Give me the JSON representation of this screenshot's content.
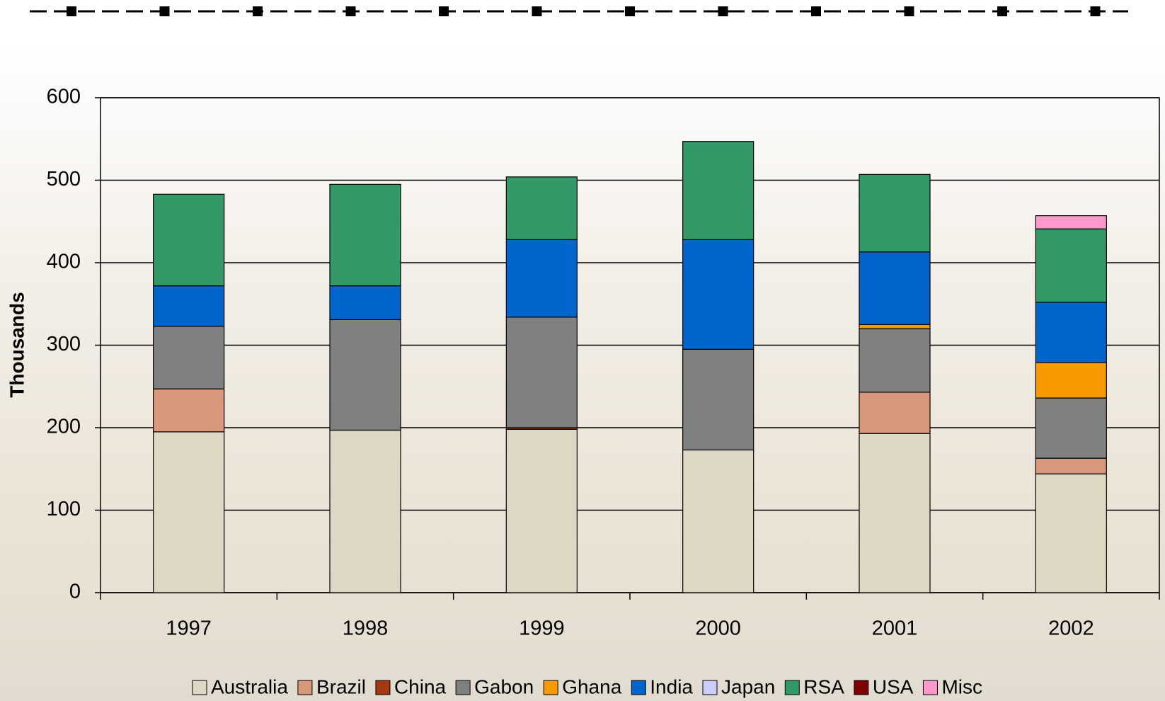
{
  "chart_data": {
    "type": "stacked-bar",
    "y_label": "Thousands",
    "categories": [
      "1997",
      "1998",
      "1999",
      "2000",
      "2001",
      "2002"
    ],
    "series": [
      {
        "name": "Australia",
        "color": "#ddd7c3",
        "values": [
          195,
          197,
          198,
          173,
          193,
          144
        ]
      },
      {
        "name": "Brazil",
        "color": "#d8987c",
        "values": [
          52,
          0,
          0,
          0,
          50,
          19
        ]
      },
      {
        "name": "China",
        "color": "#a33a12",
        "values": [
          0,
          0,
          2,
          0,
          0,
          0
        ]
      },
      {
        "name": "Gabon",
        "color": "#808080",
        "values": [
          76,
          134,
          134,
          122,
          77,
          73
        ]
      },
      {
        "name": "Ghana",
        "color": "#f79a00",
        "values": [
          0,
          0,
          0,
          0,
          5,
          43
        ]
      },
      {
        "name": "India",
        "color": "#0066cc",
        "values": [
          49,
          41,
          94,
          133,
          88,
          73
        ]
      },
      {
        "name": "Japan",
        "color": "#ccccff",
        "values": [
          0,
          0,
          0,
          0,
          0,
          0
        ]
      },
      {
        "name": "RSA",
        "color": "#339966",
        "values": [
          111,
          123,
          76,
          119,
          94,
          89
        ]
      },
      {
        "name": "USA",
        "color": "#800000",
        "values": [
          0,
          0,
          0,
          0,
          0,
          0
        ]
      },
      {
        "name": "Misc",
        "color": "#ff99cc",
        "values": [
          0,
          0,
          0,
          0,
          0,
          16
        ]
      }
    ],
    "ylim": [
      0,
      600
    ],
    "yticks": [
      0,
      100,
      200,
      300,
      400,
      500,
      600
    ],
    "grid": true
  }
}
